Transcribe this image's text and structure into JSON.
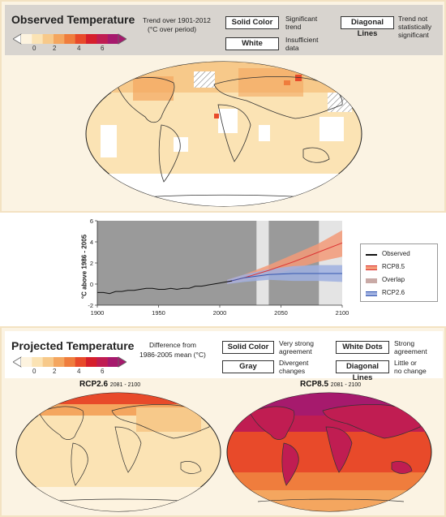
{
  "observed": {
    "title": "Observed Temperature",
    "trend_label_1": "Trend over 1901-2012",
    "trend_label_2": "(°C over period)",
    "solid_color_button": "Solid Color",
    "solid_color_desc_1": "Significant",
    "solid_color_desc_2": "trend",
    "white_button": "White",
    "white_desc_1": "Insufficient",
    "white_desc_2": "data",
    "diagonal_button": "Diagonal Lines",
    "diagonal_desc_1": "Trend not",
    "diagonal_desc_2": "statistically",
    "diagonal_desc_3": "significant",
    "scale_ticks": [
      "0",
      "2",
      "4",
      "6"
    ]
  },
  "projected": {
    "title": "Projected Temperature",
    "diff_label_1": "Difference from",
    "diff_label_2": "1986-2005 mean (°C)",
    "solid_color_button": "Solid Color",
    "solid_desc_1": "Very strong",
    "solid_desc_2": "agreement",
    "gray_button": "Gray",
    "gray_desc_1": "Divergent",
    "gray_desc_2": "changes",
    "white_dots_button": "White Dots",
    "white_dots_desc_1": "Strong",
    "white_dots_desc_2": "agreement",
    "diagonal_button": "Diagonal Lines",
    "diagonal_desc_1": "Little or",
    "diagonal_desc_2": "no change",
    "scale_ticks": [
      "0",
      "2",
      "4",
      "6"
    ],
    "map_left_title": "RCP2.6",
    "map_left_period": "2081 - 2100",
    "map_right_title": "RCP8.5",
    "map_right_period": "2081 - 2100"
  },
  "colors": {
    "scale": [
      "#fdf3df",
      "#fbe3b4",
      "#f7c98a",
      "#f4a65f",
      "#ef7d3d",
      "#e84a2a",
      "#d61f2c",
      "#c01d52",
      "#a61a6d"
    ],
    "rcp85": "#f39a78",
    "rcp26": "#9fb0e0",
    "overlap": "#c9aaa6",
    "observed": "#111111",
    "gray_panel": "#9a9a9a"
  },
  "chart_data": {
    "type": "line",
    "ylabel": "°C above 1986 - 2005",
    "ylim": [
      -2,
      6
    ],
    "xlim": [
      1900,
      2100
    ],
    "x_ticks": [
      "1900",
      "1950",
      "2000",
      "2050",
      "2100"
    ],
    "y_ticks": [
      "-2",
      "0",
      "2",
      "4",
      "6"
    ],
    "legend": [
      "Observed",
      "RCP8.5",
      "Overlap",
      "RCP2.6"
    ],
    "legend_placement": "right",
    "observed": {
      "x": [
        1900,
        1905,
        1910,
        1915,
        1920,
        1925,
        1930,
        1935,
        1940,
        1945,
        1950,
        1955,
        1960,
        1965,
        1970,
        1975,
        1980,
        1985,
        1990,
        1995,
        2000,
        2005,
        2010
      ],
      "y": [
        -0.8,
        -0.8,
        -0.9,
        -0.7,
        -0.7,
        -0.6,
        -0.6,
        -0.5,
        -0.4,
        -0.4,
        -0.5,
        -0.5,
        -0.4,
        -0.5,
        -0.4,
        -0.4,
        -0.2,
        -0.2,
        -0.1,
        0.0,
        0.1,
        0.2,
        0.3
      ]
    },
    "rcp85": {
      "x": [
        2006,
        2020,
        2040,
        2060,
        2080,
        2100
      ],
      "mean": [
        0.2,
        0.6,
        1.3,
        2.1,
        3.0,
        3.9
      ],
      "low": [
        0.0,
        0.3,
        0.8,
        1.4,
        2.1,
        2.6
      ],
      "high": [
        0.4,
        0.9,
        1.8,
        2.8,
        3.8,
        5.1
      ]
    },
    "rcp26": {
      "x": [
        2006,
        2020,
        2040,
        2060,
        2080,
        2100
      ],
      "mean": [
        0.2,
        0.6,
        0.9,
        1.0,
        1.0,
        1.0
      ],
      "low": [
        0.0,
        0.2,
        0.4,
        0.3,
        0.3,
        0.2
      ],
      "high": [
        0.4,
        0.9,
        1.4,
        1.7,
        1.8,
        1.8
      ]
    },
    "shaded_periods": [
      [
        1986,
        2005
      ],
      [
        2081,
        2100
      ]
    ]
  }
}
